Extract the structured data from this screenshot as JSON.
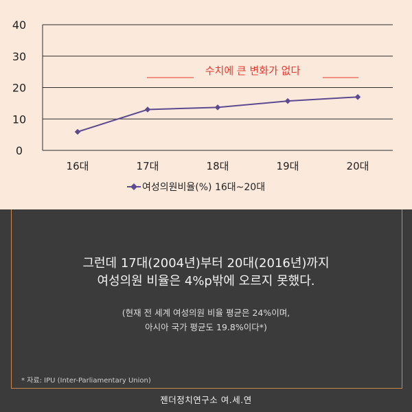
{
  "chart_data": {
    "type": "line",
    "categories": [
      "16대",
      "17대",
      "18대",
      "19대",
      "20대"
    ],
    "series": [
      {
        "name": "여성의원비율(%) 16대~20대",
        "values": [
          5.9,
          13.0,
          13.7,
          15.7,
          17.0
        ]
      }
    ],
    "ylim": [
      0,
      40
    ],
    "yticks": [
      "0",
      "10",
      "20",
      "30",
      "40"
    ],
    "grid": true,
    "legend_position": "bottom",
    "annotation": "수치에 큰 변화가 없다",
    "colors": {
      "line": "#5b4a8f",
      "annotation": "#e8372c",
      "grid": "#2b2b2b"
    }
  },
  "main_text": [
    "그런데 17대(2004년)부터 20대(2016년)까지",
    "여성의원 비율은 4%p밖에 오르지 못했다."
  ],
  "sub_text": [
    "(현재 전 세계 여성의원 비율 평균은 24%이며,",
    "아시아 국가 평균도 19.8%이다*)"
  ],
  "source": "* 자료: IPU (Inter-Parliamentary Union)",
  "credit": "젠더정치연구소 여.세.연"
}
